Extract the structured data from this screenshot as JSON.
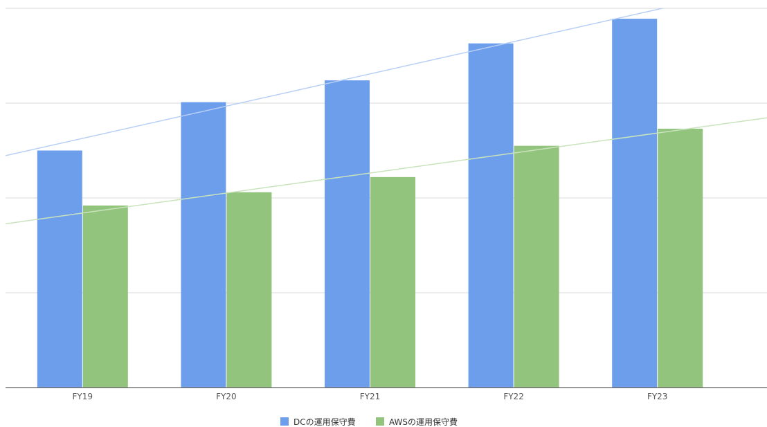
{
  "chart_data": {
    "type": "bar",
    "categories": [
      "FY19",
      "FY20",
      "FY21",
      "FY22",
      "FY23"
    ],
    "ylim": [
      0,
      4
    ],
    "grid": true,
    "legend_placement": "bottom-center",
    "series": [
      {
        "name": "DCの運用保守費",
        "color": "#6d9eeb",
        "trendline_color": "#b7cff5",
        "values": [
          2.5,
          3.01,
          3.24,
          3.63,
          3.89
        ]
      },
      {
        "name": "AWSの運用保守費",
        "color": "#93c47d",
        "trendline_color": "#c9e3bd",
        "values": [
          1.92,
          2.06,
          2.22,
          2.55,
          2.73
        ]
      }
    ],
    "trendlines": true
  }
}
